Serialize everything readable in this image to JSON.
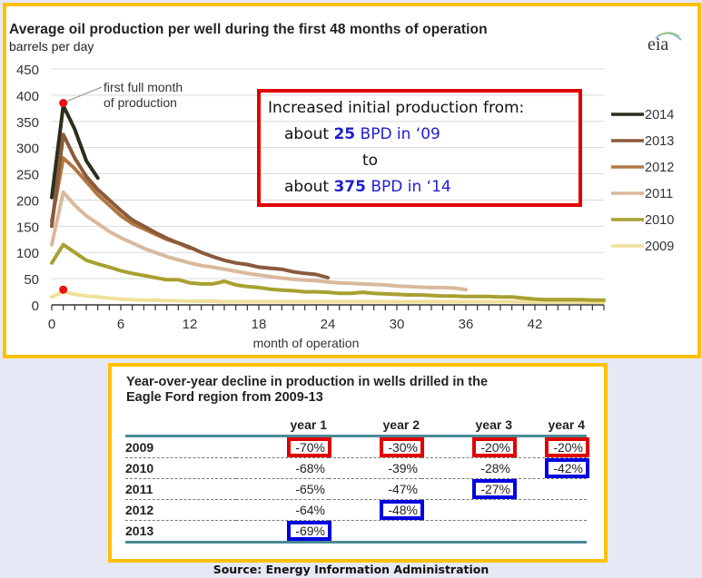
{
  "chart_data": {
    "type": "line",
    "title": "Average oil production per well during the first 48 months of operation",
    "ylabel": "barrels per day",
    "xlabel": "month of operation",
    "ylim": [
      0,
      450
    ],
    "xlim": [
      0,
      48
    ],
    "yticks": [
      0,
      50,
      100,
      150,
      200,
      250,
      300,
      350,
      400,
      450
    ],
    "xticks": [
      0,
      6,
      12,
      18,
      24,
      30,
      36,
      42
    ],
    "grid": true,
    "legend_position": "right",
    "annotation": "first full month of production",
    "annotation_points": [
      {
        "series": "2014",
        "x": 1,
        "y": 385
      },
      {
        "series": "2009",
        "x": 1,
        "y": 29
      }
    ],
    "series": [
      {
        "name": "2014",
        "color": "#2b2f1a",
        "x": [
          0,
          1,
          2,
          3,
          4
        ],
        "values": [
          205,
          380,
          335,
          275,
          242
        ]
      },
      {
        "name": "2013",
        "color": "#8b5a3a",
        "x": [
          0,
          1,
          2,
          3,
          4,
          5,
          6,
          7,
          8,
          9,
          10,
          11,
          12,
          13,
          14,
          15,
          16,
          17,
          18,
          19,
          20,
          21,
          22,
          23,
          24
        ],
        "values": [
          150,
          325,
          280,
          245,
          220,
          200,
          180,
          162,
          150,
          138,
          127,
          118,
          110,
          100,
          92,
          85,
          80,
          77,
          72,
          70,
          68,
          63,
          60,
          58,
          52
        ]
      },
      {
        "name": "2012",
        "color": "#b07840",
        "x": [
          0,
          1,
          2,
          3,
          4,
          5,
          6,
          7,
          8,
          9,
          10,
          11,
          12
        ],
        "values": [
          160,
          280,
          260,
          235,
          210,
          190,
          170,
          155,
          145,
          135,
          125,
          118,
          108
        ]
      },
      {
        "name": "2011",
        "color": "#d9b89c",
        "x": [
          0,
          1,
          2,
          3,
          4,
          5,
          6,
          7,
          8,
          9,
          10,
          11,
          12,
          13,
          14,
          15,
          16,
          17,
          18,
          19,
          20,
          21,
          22,
          23,
          24,
          25,
          26,
          27,
          28,
          29,
          30,
          31,
          32,
          33,
          34,
          35,
          36
        ],
        "values": [
          115,
          215,
          190,
          170,
          155,
          140,
          128,
          118,
          108,
          100,
          92,
          86,
          80,
          75,
          72,
          68,
          64,
          60,
          57,
          54,
          51,
          49,
          47,
          46,
          44,
          42,
          41,
          40,
          39,
          38,
          36,
          35,
          34,
          33,
          33,
          32,
          29
        ]
      },
      {
        "name": "2010",
        "color": "#a8a030",
        "x": [
          0,
          1,
          2,
          3,
          4,
          5,
          6,
          7,
          8,
          9,
          10,
          11,
          12,
          13,
          14,
          15,
          16,
          17,
          18,
          19,
          20,
          21,
          22,
          23,
          24,
          25,
          26,
          27,
          28,
          29,
          30,
          31,
          32,
          33,
          34,
          35,
          36,
          37,
          38,
          39,
          40,
          41,
          42,
          43,
          44,
          45,
          46,
          47,
          48
        ],
        "values": [
          80,
          115,
          100,
          85,
          78,
          72,
          65,
          60,
          56,
          52,
          48,
          48,
          42,
          40,
          40,
          45,
          38,
          35,
          33,
          30,
          28,
          27,
          25,
          25,
          24,
          22,
          22,
          24,
          22,
          21,
          20,
          19,
          19,
          18,
          17,
          17,
          16,
          16,
          16,
          15,
          15,
          13,
          11,
          10,
          10,
          10,
          10,
          9,
          9
        ]
      },
      {
        "name": "2009",
        "color": "#f0e09a",
        "x": [
          0,
          1,
          2,
          3,
          4,
          5,
          6,
          7,
          8,
          9,
          10,
          11,
          12,
          13,
          14,
          15,
          16,
          17,
          18,
          19,
          20,
          21,
          22,
          23,
          24,
          25,
          26,
          27,
          28,
          29,
          30,
          31,
          32,
          33,
          34,
          35,
          36,
          37,
          38,
          39,
          40,
          41,
          42,
          43,
          44,
          45,
          46,
          47,
          48
        ],
        "values": [
          15,
          25,
          20,
          17,
          15,
          13,
          11,
          10,
          9,
          9,
          8,
          8,
          7,
          7,
          7,
          6,
          6,
          6,
          6,
          6,
          6,
          6,
          6,
          6,
          6,
          6,
          6,
          6,
          6,
          6,
          6,
          6,
          6,
          6,
          6,
          6,
          6,
          6,
          6,
          6,
          6,
          6,
          5,
          5,
          5,
          5,
          5,
          5,
          5
        ]
      }
    ]
  },
  "logo": {
    "text": "eia"
  },
  "callout": {
    "line1": "Increased initial production from:",
    "line2_pre": "about ",
    "line2_num": "25",
    "line2_post": " BPD in ‘09",
    "line3": "to",
    "line4_pre": "about ",
    "line4_num": "375",
    "line4_post": " BPD in ‘14"
  },
  "table": {
    "title_line1": "Year-over-year decline in production  in wells drilled in the",
    "title_line2": "Eagle Ford  region from 2009-13",
    "columns": [
      "",
      "year 1",
      "year 2",
      "year 3",
      "year 4"
    ],
    "rows": [
      {
        "label": "2009",
        "cells": [
          "-70%",
          "-30%",
          "-20%",
          "-20%"
        ],
        "highlight": [
          "red",
          "red",
          "red",
          "red"
        ]
      },
      {
        "label": "2010",
        "cells": [
          "-68%",
          "-39%",
          "-28%",
          "-42%"
        ],
        "highlight": [
          "",
          "",
          "",
          "blue"
        ]
      },
      {
        "label": "2011",
        "cells": [
          "-65%",
          "-47%",
          "-27%",
          ""
        ],
        "highlight": [
          "",
          "",
          "blue",
          ""
        ]
      },
      {
        "label": "2012",
        "cells": [
          "-64%",
          "-48%",
          "",
          ""
        ],
        "highlight": [
          "",
          "blue",
          "",
          ""
        ]
      },
      {
        "label": "2013",
        "cells": [
          "-69%",
          "",
          "",
          ""
        ],
        "highlight": [
          "blue",
          "",
          "",
          ""
        ]
      }
    ]
  },
  "source": "Source: Energy Information Administration"
}
